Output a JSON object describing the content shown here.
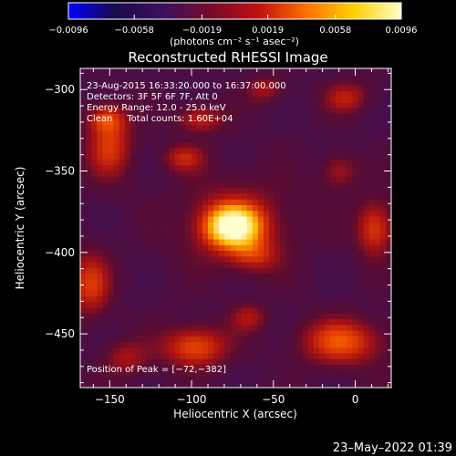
{
  "chart_data": {
    "type": "heatmap",
    "title": "Reconstructed RHESSI Image",
    "xlabel": "Heliocentric X (arcsec)",
    "ylabel": "Heliocentric Y (arcsec)",
    "xlim": [
      -168,
      22
    ],
    "ylim": [
      -483,
      -287
    ],
    "xticks": [
      -150,
      -100,
      -50,
      0
    ],
    "yticks": [
      -300,
      -350,
      -400,
      -450
    ],
    "xtick_labels": [
      "−150",
      "−100",
      "−50",
      "0"
    ],
    "ytick_labels": [
      "−300",
      "−350",
      "−400",
      "−450"
    ],
    "colorbar": {
      "min": -0.0096,
      "max": 0.0096,
      "ticks": [
        -0.0096,
        -0.0058,
        -0.0019,
        0.0019,
        0.0058,
        0.0096
      ],
      "tick_labels": [
        "−0.0096",
        "−0.0058",
        "−0.0019",
        "0.0019",
        "0.0058",
        "0.0096"
      ],
      "unit_label": "(photons cm⁻² s⁻¹ asec⁻²)",
      "colors": [
        "#0000ff",
        "#1a0b4a",
        "#3d1060",
        "#7a0a2a",
        "#c01010",
        "#ff7000",
        "#ffd000",
        "#ffffc8"
      ]
    },
    "annotations": [
      "23-Aug-2015 16:33:20.000 to 16:37:00.000",
      "Detectors: 3F 5F 6F 7F, Att 0",
      "Energy Range: 12.0 - 25.0 keV",
      "Clean     Total counts: 1.60E+04"
    ],
    "peak": {
      "label": "Position of Peak = [−72,−382]",
      "x": -72,
      "y": -382
    },
    "sources": [
      {
        "x": -75,
        "y": -384,
        "amp": 0.0096,
        "sx": 12,
        "sy": 9
      },
      {
        "x": -72,
        "y": -382,
        "amp": 0.003,
        "sx": 26,
        "sy": 20
      },
      {
        "x": -150,
        "y": -335,
        "amp": 0.0045,
        "sx": 10,
        "sy": 14
      },
      {
        "x": -152,
        "y": -318,
        "amp": 0.004,
        "sx": 8,
        "sy": 6
      },
      {
        "x": -95,
        "y": -318,
        "amp": 0.004,
        "sx": 10,
        "sy": 6
      },
      {
        "x": -105,
        "y": -342,
        "amp": 0.0035,
        "sx": 9,
        "sy": 6
      },
      {
        "x": -162,
        "y": -420,
        "amp": 0.0045,
        "sx": 9,
        "sy": 14
      },
      {
        "x": -140,
        "y": -465,
        "amp": 0.003,
        "sx": 10,
        "sy": 8
      },
      {
        "x": -98,
        "y": -458,
        "amp": 0.0055,
        "sx": 14,
        "sy": 9
      },
      {
        "x": -65,
        "y": -440,
        "amp": 0.003,
        "sx": 8,
        "sy": 6
      },
      {
        "x": -8,
        "y": -455,
        "amp": 0.0055,
        "sx": 18,
        "sy": 10
      },
      {
        "x": 12,
        "y": -385,
        "amp": 0.005,
        "sx": 8,
        "sy": 12
      },
      {
        "x": -10,
        "y": -350,
        "amp": 0.003,
        "sx": 8,
        "sy": 8
      },
      {
        "x": -5,
        "y": -305,
        "amp": 0.0035,
        "sx": 10,
        "sy": 7
      },
      {
        "x": -55,
        "y": -300,
        "amp": 0.003,
        "sx": 8,
        "sy": 6
      },
      {
        "x": -62,
        "y": -402,
        "amp": 0.003,
        "sx": 10,
        "sy": 7
      }
    ]
  },
  "footer": {
    "timestamp": "23–May–2022 01:39"
  }
}
